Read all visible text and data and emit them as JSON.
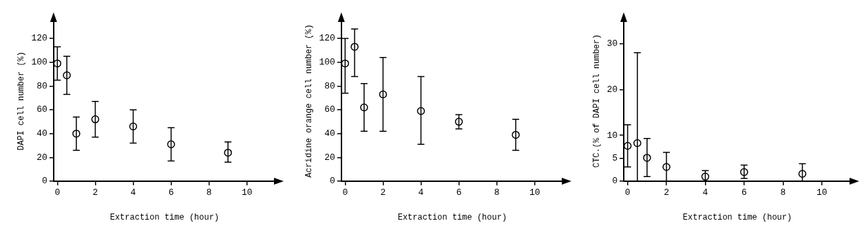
{
  "chart_data": [
    {
      "type": "scatter",
      "xlabel": "Extraction time (hour)",
      "ylabel": "DAPI cell number (%)",
      "x": [
        0,
        0.5,
        1,
        2,
        4,
        6,
        9
      ],
      "series": [
        {
          "color": "#000000",
          "values": [
            99,
            89,
            40,
            52,
            46,
            31,
            24
          ],
          "errors": [
            [
              85,
              113
            ],
            [
              73,
              105
            ],
            [
              26,
              54
            ],
            [
              37,
              67
            ],
            [
              32,
              60
            ],
            [
              17,
              45
            ],
            [
              16,
              33
            ]
          ]
        }
      ],
      "xlim": [
        -0.2,
        11.5
      ],
      "xticks": [
        0,
        2,
        4,
        6,
        8,
        10
      ],
      "ylim": [
        0,
        135
      ],
      "yticks": [
        0,
        20,
        40,
        60,
        80,
        100,
        120
      ],
      "marker": "circle",
      "grid": false,
      "legend": false
    },
    {
      "type": "scatter",
      "xlabel": "Extraction time (hour)",
      "ylabel": "Acridine orange cell number (%)",
      "x": [
        0,
        0.5,
        1,
        2,
        4,
        6,
        9
      ],
      "series": [
        {
          "color": "#000000",
          "values": [
            99,
            113,
            62,
            73,
            59,
            50,
            39
          ],
          "errors": [
            [
              74,
              120
            ],
            [
              88,
              128
            ],
            [
              42,
              82
            ],
            [
              42,
              104
            ],
            [
              31,
              88
            ],
            [
              44,
              56
            ],
            [
              26,
              52
            ]
          ]
        }
      ],
      "xlim": [
        -0.2,
        11.5
      ],
      "xticks": [
        0,
        2,
        4,
        6,
        8,
        10
      ],
      "ylim": [
        0,
        135
      ],
      "yticks": [
        0,
        20,
        40,
        60,
        80,
        100,
        120
      ],
      "marker": "circle",
      "grid": false,
      "legend": false
    },
    {
      "type": "scatter",
      "xlabel": "Extraction time (hour)",
      "ylabel": "CTC.(% of DAPI cell number)",
      "x": [
        0,
        0.5,
        1,
        2,
        4,
        6,
        9
      ],
      "series": [
        {
          "color": "#000000",
          "values": [
            7.7,
            8.3,
            5.1,
            3.1,
            1.0,
            2.0,
            1.6
          ],
          "errors": [
            [
              3.1,
              12.3
            ],
            [
              0,
              28
            ],
            [
              1.0,
              9.3
            ],
            [
              0,
              6.3
            ],
            [
              0,
              2.3
            ],
            [
              0.6,
              3.5
            ],
            [
              0,
              3.8
            ]
          ]
        }
      ],
      "xlim": [
        -0.2,
        11.5
      ],
      "xticks": [
        0,
        2,
        4,
        6,
        8,
        10
      ],
      "ylim": [
        0,
        35
      ],
      "yticks": [
        0,
        5,
        10,
        20,
        30
      ],
      "marker": "circle",
      "grid": false,
      "legend": false
    }
  ]
}
